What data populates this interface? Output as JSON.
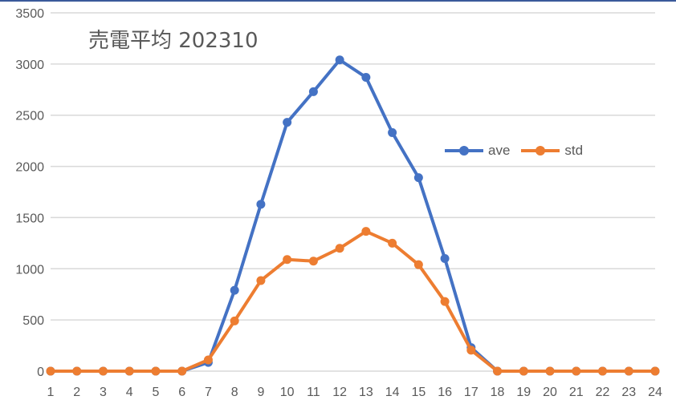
{
  "chart_data": {
    "type": "line",
    "title": "売電平均 202310",
    "xlabel": "",
    "ylabel": "",
    "categories": [
      "1",
      "2",
      "3",
      "4",
      "5",
      "6",
      "7",
      "8",
      "9",
      "10",
      "11",
      "12",
      "13",
      "14",
      "15",
      "16",
      "17",
      "18",
      "19",
      "20",
      "21",
      "22",
      "23",
      "24"
    ],
    "series": [
      {
        "name": "ave",
        "color": "#4472C4",
        "values": [
          0,
          0,
          0,
          0,
          0,
          0,
          85,
          790,
          1630,
          2430,
          2730,
          3040,
          2870,
          2330,
          1890,
          1100,
          230,
          0,
          0,
          0,
          0,
          0,
          0,
          0
        ]
      },
      {
        "name": "std",
        "color": "#ED7D31",
        "values": [
          0,
          0,
          0,
          0,
          0,
          0,
          110,
          490,
          885,
          1090,
          1075,
          1200,
          1365,
          1250,
          1040,
          680,
          205,
          0,
          0,
          0,
          0,
          0,
          0,
          0
        ]
      }
    ],
    "ylim": [
      0,
      3500
    ],
    "yticks": [
      0,
      500,
      1000,
      1500,
      2000,
      2500,
      3000,
      3500
    ],
    "grid": true,
    "legend_position": "inside-right"
  },
  "title": "売電平均 202310",
  "legend": [
    {
      "label": "ave",
      "color": "#4472C4"
    },
    {
      "label": "std",
      "color": "#ED7D31"
    }
  ]
}
